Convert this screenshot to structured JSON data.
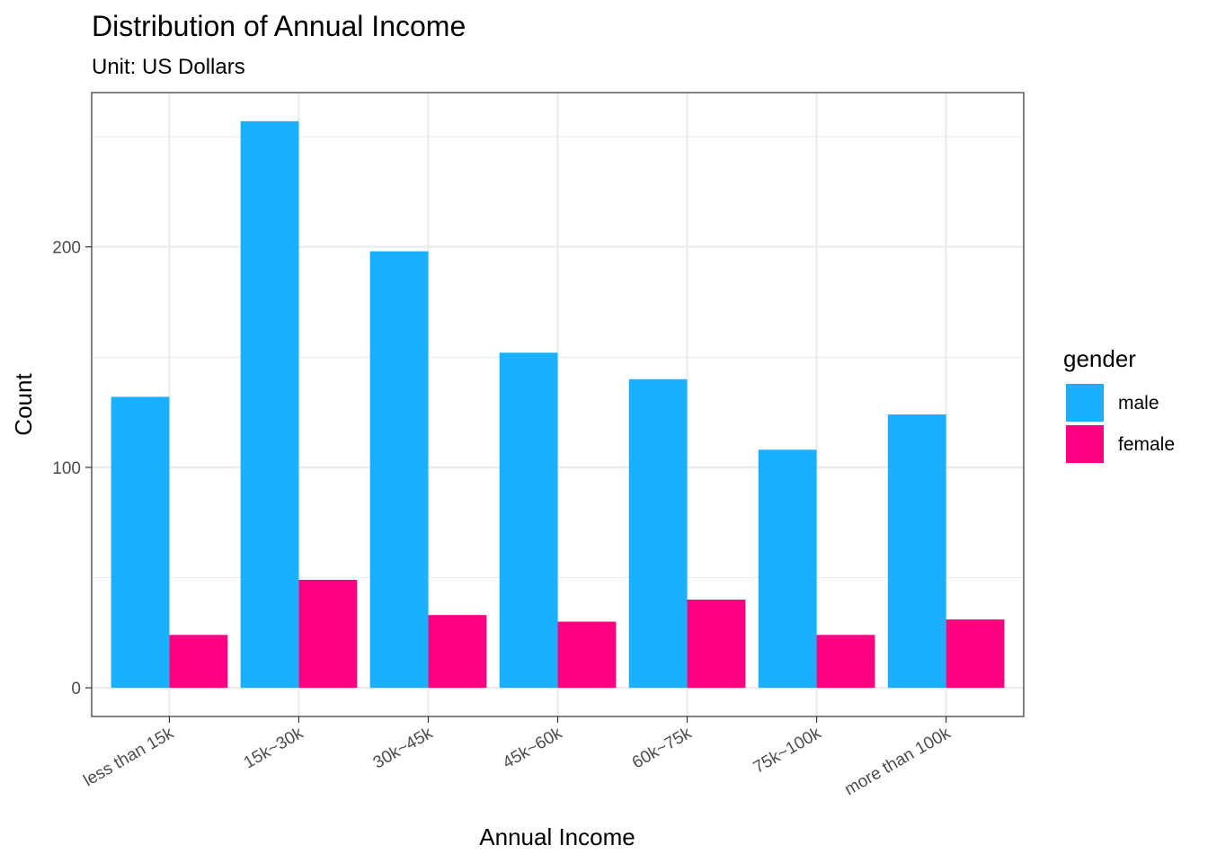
{
  "chart_data": {
    "type": "bar",
    "title": "Distribution of Annual Income",
    "subtitle": "Unit: US Dollars",
    "xlabel": "Annual Income",
    "ylabel": "Count",
    "categories": [
      "less than 15k",
      "15k~30k",
      "30k~45k",
      "45k~60k",
      "60k~75k",
      "75k~100k",
      "more than 100k"
    ],
    "series": [
      {
        "name": "male",
        "color": "#1AAFFF",
        "values": [
          132,
          257,
          198,
          152,
          140,
          108,
          124
        ]
      },
      {
        "name": "female",
        "color": "#FF0080",
        "values": [
          24,
          49,
          33,
          30,
          40,
          24,
          31
        ]
      }
    ],
    "ylim": [
      -13,
      270
    ],
    "yticks": [
      0,
      100,
      200
    ],
    "ytick_labels": [
      "0",
      "100",
      "200"
    ],
    "grid": true,
    "legend": {
      "title": "gender",
      "position": "right"
    }
  }
}
